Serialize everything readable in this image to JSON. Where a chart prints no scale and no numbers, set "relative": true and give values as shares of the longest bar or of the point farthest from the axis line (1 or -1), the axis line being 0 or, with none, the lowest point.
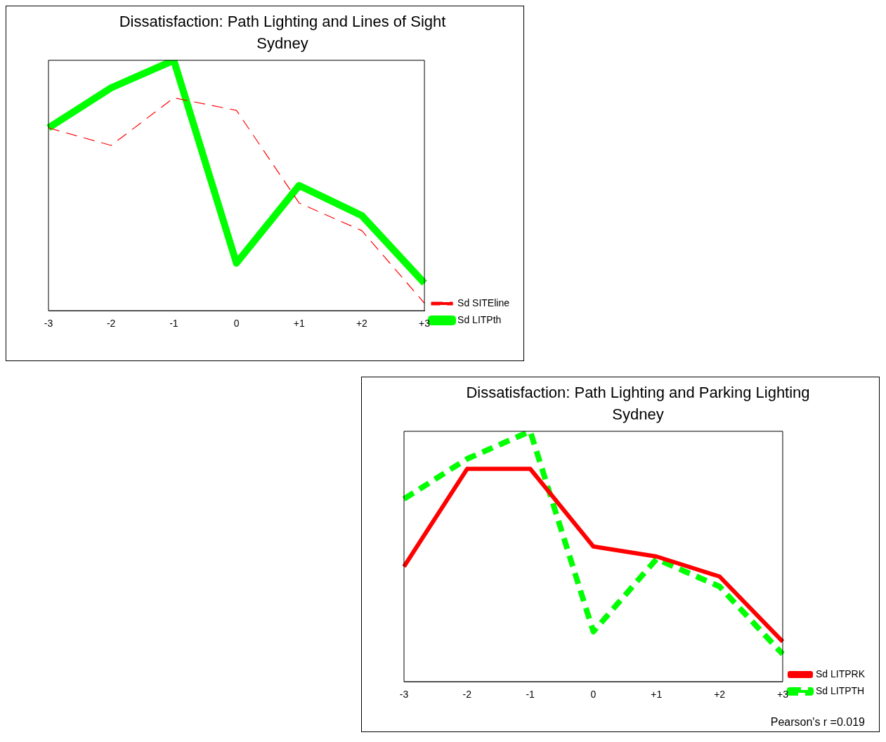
{
  "chart_data": [
    {
      "type": "line",
      "title": "Dissatisfaction: Path Lighting and Lines of Sight",
      "subtitle": "Sydney",
      "relative": true,
      "categories": [
        "-3",
        "-2",
        "-1",
        "0",
        "+1",
        "+2",
        "+3"
      ],
      "legend": "right",
      "marker": "none",
      "grid": false,
      "series": [
        {
          "name": "Sd SITEline",
          "color": "#ff0000",
          "line_style": "dashed",
          "values": [
            0.73,
            0.66,
            0.85,
            0.8,
            0.43,
            0.32,
            0.03
          ]
        },
        {
          "name": "Sd LITPth",
          "color": "#00ff00",
          "line_style": "solid",
          "values": [
            0.73,
            0.89,
            1,
            0.19,
            0.5,
            0.38,
            0.11
          ]
        }
      ]
    },
    {
      "type": "line",
      "title": "Dissatisfaction: Path Lighting and Parking Lighting",
      "subtitle": "Sydney",
      "relative": true,
      "categories": [
        "-3",
        "-2",
        "-1",
        "0",
        "+1",
        "+2",
        "+3"
      ],
      "legend": "right",
      "marker": "none",
      "grid": false,
      "annotations": [
        "Pearson's r =0.019"
      ],
      "series": [
        {
          "name": "Sd LITPRK",
          "color": "#ff0000",
          "line_style": "solid",
          "values": [
            0.46,
            0.85,
            0.85,
            0.54,
            0.5,
            0.42,
            0.16
          ]
        },
        {
          "name": "Sd LITPTH",
          "color": "#00ff00",
          "line_style": "dashed",
          "values": [
            0.73,
            0.89,
            1,
            0.2,
            0.49,
            0.38,
            0.11
          ]
        }
      ]
    }
  ]
}
